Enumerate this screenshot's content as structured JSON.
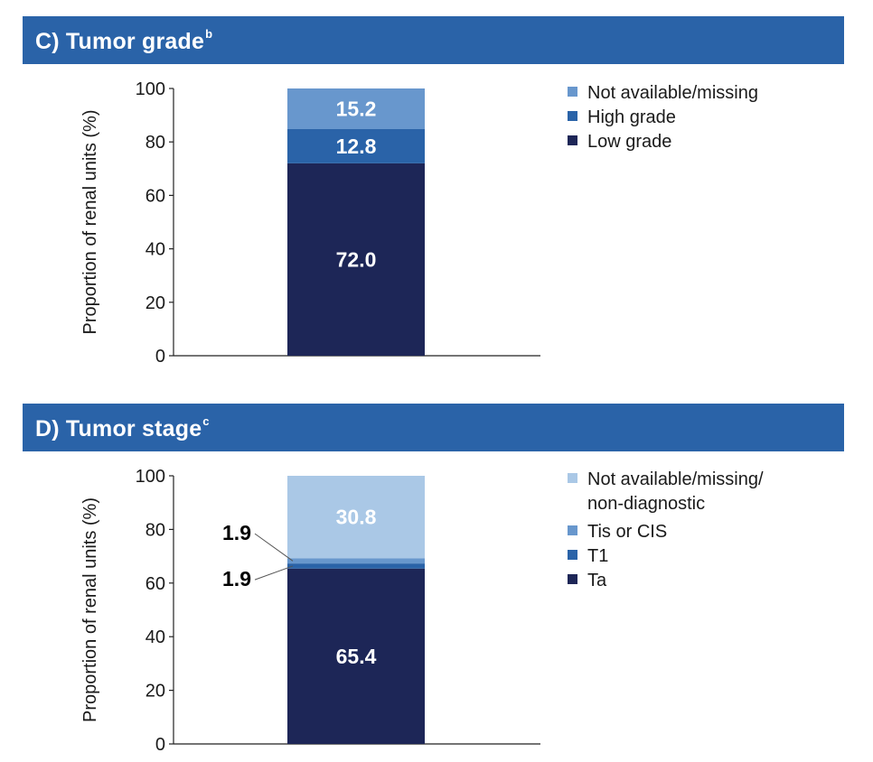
{
  "panels": {
    "grade": {
      "title": "C) Tumor grade",
      "title_sup": "b"
    },
    "stage": {
      "title": "D) Tumor stage",
      "title_sup": "c"
    }
  },
  "chart_data": [
    {
      "type": "bar",
      "stacked": true,
      "title": "C) Tumor grade",
      "ylabel": "Proportion of renal units (%)",
      "ylim": [
        0,
        100
      ],
      "yticks": [
        "0",
        "20",
        "40",
        "60",
        "80",
        "100"
      ],
      "grid": false,
      "legend_position": "right",
      "series": [
        {
          "name": "Low grade",
          "value": 72.0,
          "label": "72.0",
          "color": "#1d2657",
          "label_color": "#ffffff"
        },
        {
          "name": "High grade",
          "value": 12.8,
          "label": "12.8",
          "color": "#2a63a8",
          "label_color": "#ffffff"
        },
        {
          "name": "Not available/missing",
          "value": 15.2,
          "label": "15.2",
          "color": "#6897cd",
          "label_color": "#ffffff"
        }
      ],
      "legend": [
        {
          "lines": [
            "Not available/missing"
          ],
          "color": "#6897cd"
        },
        {
          "lines": [
            "High grade"
          ],
          "color": "#2a63a8"
        },
        {
          "lines": [
            "Low grade"
          ],
          "color": "#1d2657"
        }
      ]
    },
    {
      "type": "bar",
      "stacked": true,
      "title": "D) Tumor stage",
      "ylabel": "Proportion of renal units (%)",
      "ylim": [
        0,
        100
      ],
      "yticks": [
        "0",
        "20",
        "40",
        "60",
        "80",
        "100"
      ],
      "grid": false,
      "legend_position": "right",
      "series": [
        {
          "name": "Ta",
          "value": 65.4,
          "label": "65.4",
          "color": "#1d2657",
          "label_color": "#ffffff"
        },
        {
          "name": "T1",
          "value": 1.9,
          "label": "1.9",
          "color": "#2a63a8",
          "label_color": "#000000",
          "callout": true
        },
        {
          "name": "Tis or CIS",
          "value": 1.9,
          "label": "1.9",
          "color": "#6897cd",
          "label_color": "#000000",
          "callout": true
        },
        {
          "name": "Not available/missing/non-diagnostic",
          "value": 30.8,
          "label": "30.8",
          "color": "#aac8e6",
          "label_color": "#ffffff"
        }
      ],
      "legend": [
        {
          "lines": [
            "Not available/missing/",
            "non-diagnostic"
          ],
          "color": "#aac8e6"
        },
        {
          "lines": [
            "Tis or CIS"
          ],
          "color": "#6897cd"
        },
        {
          "lines": [
            "T1"
          ],
          "color": "#2a63a8"
        },
        {
          "lines": [
            "Ta"
          ],
          "color": "#1d2657"
        }
      ]
    }
  ]
}
